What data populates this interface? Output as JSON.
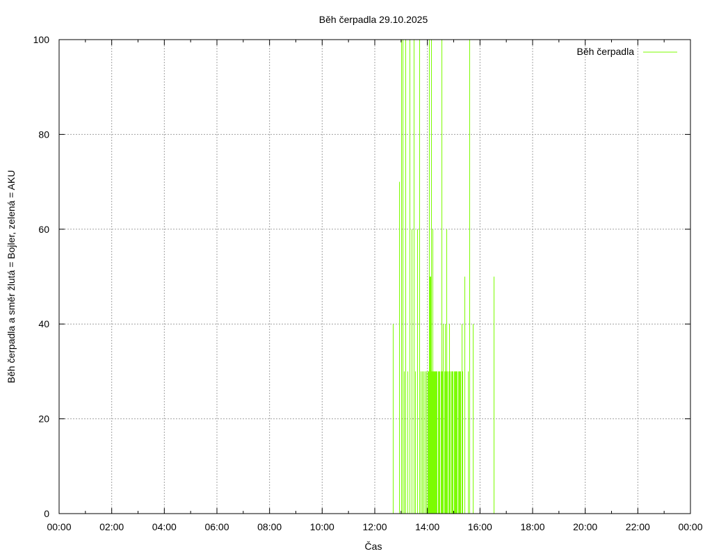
{
  "chart_data": {
    "type": "bar",
    "title": "Běh čerpadla 29.10.2025",
    "xlabel": "Čas",
    "ylabel": "Běh čerpadla a směr žlutá = Bojler, zelená = AKU",
    "x_tick_labels": [
      "00:00",
      "02:00",
      "04:00",
      "06:00",
      "08:00",
      "10:00",
      "12:00",
      "14:00",
      "16:00",
      "18:00",
      "20:00",
      "22:00",
      "00:00"
    ],
    "y_tick_labels": [
      "0",
      "20",
      "40",
      "60",
      "80",
      "100"
    ],
    "xlim_hours": [
      0,
      24
    ],
    "ylim": [
      0,
      100
    ],
    "grid": true,
    "legend_position": "top-right",
    "series": [
      {
        "name": "Běh čerpadla",
        "color": "#7cfc00",
        "x": [
          12.7,
          12.93,
          13.0,
          13.05,
          13.1,
          13.17,
          13.25,
          13.32,
          13.4,
          13.47,
          13.54,
          13.6,
          13.7,
          13.75,
          13.8,
          13.85,
          13.9,
          13.95,
          14.0,
          14.03,
          14.05,
          14.07,
          14.09,
          14.1,
          14.12,
          14.15,
          14.18,
          14.2,
          14.23,
          14.25,
          14.28,
          14.3,
          14.33,
          14.36,
          14.4,
          14.43,
          14.46,
          14.5,
          14.53,
          14.56,
          14.6,
          14.63,
          14.66,
          14.7,
          14.73,
          14.76,
          14.8,
          14.82,
          14.85,
          14.9,
          14.93,
          14.96,
          15.0,
          15.03,
          15.06,
          15.1,
          15.13,
          15.16,
          15.2,
          15.23,
          15.26,
          15.3,
          15.33,
          15.4,
          15.53,
          15.6,
          15.73,
          16.52
        ],
        "y": [
          40,
          70,
          100,
          100,
          30,
          100,
          30,
          100,
          60,
          100,
          30,
          60,
          100,
          30,
          30,
          30,
          30,
          30,
          30,
          30,
          100,
          30,
          50,
          30,
          50,
          100,
          30,
          60,
          30,
          30,
          30,
          30,
          30,
          30,
          30,
          30,
          30,
          30,
          100,
          30,
          40,
          30,
          40,
          30,
          60,
          30,
          30,
          40,
          30,
          30,
          30,
          30,
          30,
          30,
          30,
          30,
          30,
          30,
          30,
          30,
          30,
          40,
          30,
          50,
          30,
          100,
          40,
          50
        ]
      }
    ]
  }
}
